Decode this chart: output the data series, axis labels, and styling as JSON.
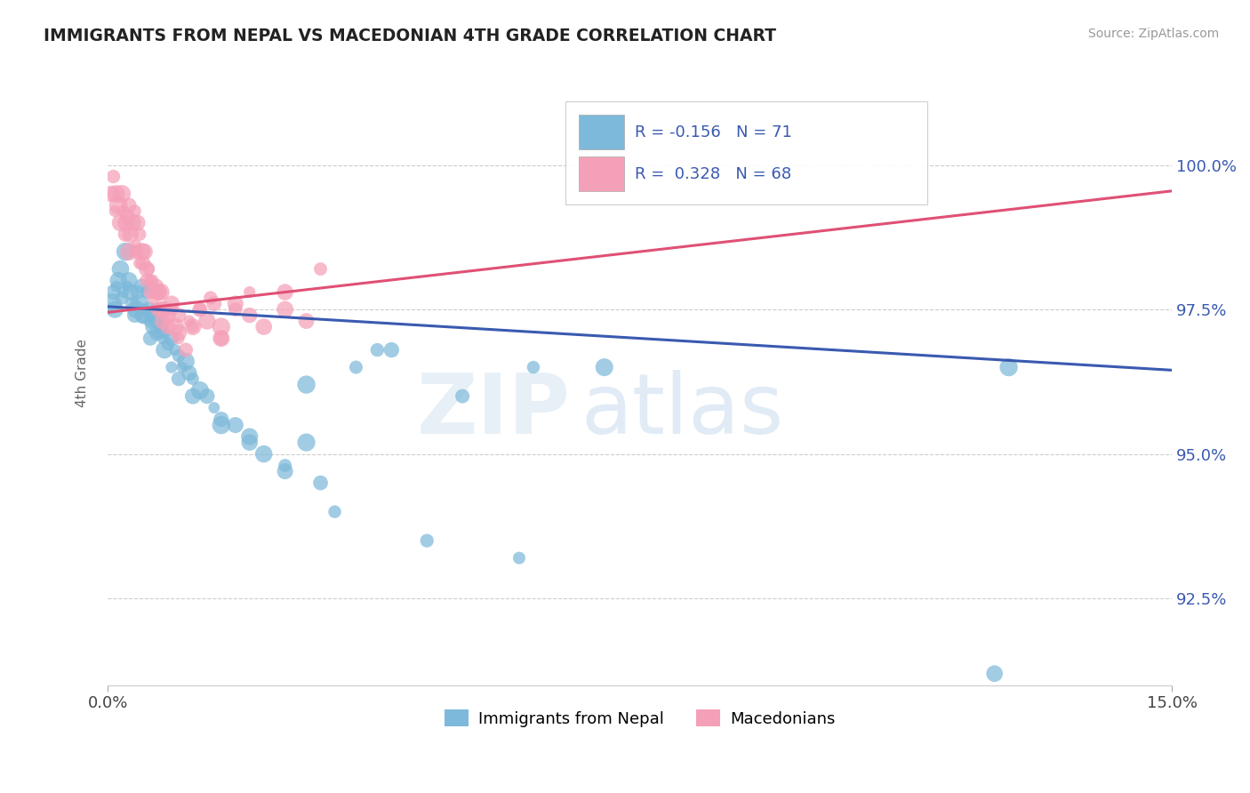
{
  "title": "IMMIGRANTS FROM NEPAL VS MACEDONIAN 4TH GRADE CORRELATION CHART",
  "source_text": "Source: ZipAtlas.com",
  "ylabel": "4th Grade",
  "xlim": [
    0.0,
    15.0
  ],
  "ylim": [
    91.0,
    101.8
  ],
  "yticks": [
    92.5,
    95.0,
    97.5,
    100.0
  ],
  "ytick_labels": [
    "92.5%",
    "95.0%",
    "97.5%",
    "100.0%"
  ],
  "xticks": [
    0.0,
    15.0
  ],
  "xtick_labels": [
    "0.0%",
    "15.0%"
  ],
  "blue_color": "#7db9da",
  "pink_color": "#f4a0b8",
  "blue_line_color": "#3a5ab0",
  "pink_line_color": "#e05075",
  "blue_line_x0": 0.0,
  "blue_line_y0": 97.55,
  "blue_line_x1": 15.0,
  "blue_line_y1": 96.45,
  "pink_line_x0": 0.0,
  "pink_line_y0": 97.45,
  "pink_line_x1": 15.0,
  "pink_line_y1": 99.55,
  "blue_x": [
    0.05,
    0.08,
    0.1,
    0.12,
    0.15,
    0.18,
    0.2,
    0.22,
    0.25,
    0.28,
    0.3,
    0.32,
    0.35,
    0.38,
    0.4,
    0.42,
    0.45,
    0.48,
    0.5,
    0.52,
    0.55,
    0.58,
    0.6,
    0.63,
    0.65,
    0.68,
    0.7,
    0.72,
    0.75,
    0.78,
    0.8,
    0.85,
    0.9,
    0.95,
    1.0,
    1.05,
    1.1,
    1.15,
    1.2,
    1.3,
    1.4,
    1.5,
    1.6,
    1.8,
    2.0,
    2.2,
    2.5,
    2.8,
    3.0,
    3.5,
    4.0,
    5.0,
    6.0,
    7.0,
    2.8,
    0.5,
    0.6,
    0.7,
    0.8,
    0.9,
    1.0,
    1.2,
    1.6,
    2.0,
    2.5,
    3.2,
    4.5,
    5.8,
    3.8,
    12.5,
    12.7
  ],
  "blue_y": [
    97.6,
    97.8,
    97.5,
    97.9,
    98.0,
    98.2,
    97.7,
    97.8,
    98.5,
    97.9,
    98.0,
    97.8,
    97.6,
    97.4,
    97.5,
    97.8,
    97.6,
    97.9,
    97.5,
    97.4,
    97.8,
    97.5,
    97.3,
    97.4,
    97.2,
    97.5,
    97.3,
    97.1,
    97.2,
    97.0,
    97.1,
    96.9,
    97.0,
    96.8,
    96.7,
    96.5,
    96.6,
    96.4,
    96.3,
    96.1,
    96.0,
    95.8,
    95.6,
    95.5,
    95.3,
    95.0,
    94.8,
    96.2,
    94.5,
    96.5,
    96.8,
    96.0,
    96.5,
    96.5,
    95.2,
    97.4,
    97.0,
    97.1,
    96.8,
    96.5,
    96.3,
    96.0,
    95.5,
    95.2,
    94.7,
    94.0,
    93.5,
    93.2,
    96.8,
    91.2,
    96.5
  ],
  "pink_x": [
    0.05,
    0.08,
    0.1,
    0.12,
    0.15,
    0.18,
    0.2,
    0.22,
    0.25,
    0.28,
    0.3,
    0.32,
    0.35,
    0.38,
    0.4,
    0.42,
    0.45,
    0.48,
    0.5,
    0.52,
    0.55,
    0.58,
    0.6,
    0.63,
    0.65,
    0.68,
    0.7,
    0.72,
    0.75,
    0.78,
    0.8,
    0.85,
    0.9,
    0.95,
    1.0,
    1.1,
    1.2,
    1.3,
    1.4,
    1.5,
    1.6,
    1.8,
    2.0,
    2.2,
    2.5,
    2.8,
    0.3,
    0.45,
    0.6,
    0.75,
    0.9,
    1.0,
    1.2,
    1.6,
    2.0,
    2.5,
    3.0,
    0.25,
    0.4,
    0.55,
    0.7,
    0.85,
    1.0,
    1.15,
    1.3,
    1.45,
    1.6,
    1.8
  ],
  "pink_y": [
    99.5,
    99.8,
    99.2,
    99.5,
    99.3,
    99.0,
    99.5,
    99.2,
    98.8,
    99.1,
    99.3,
    98.8,
    99.0,
    99.2,
    98.6,
    99.0,
    98.8,
    98.5,
    98.3,
    98.5,
    98.0,
    98.2,
    97.8,
    98.0,
    97.7,
    97.9,
    97.5,
    97.8,
    97.5,
    97.3,
    97.5,
    97.2,
    97.5,
    97.2,
    97.0,
    96.8,
    97.2,
    97.5,
    97.3,
    97.6,
    97.0,
    97.5,
    97.8,
    97.2,
    97.5,
    97.3,
    98.5,
    98.3,
    98.0,
    97.8,
    97.6,
    97.4,
    97.2,
    97.0,
    97.4,
    97.8,
    98.2,
    99.0,
    98.5,
    98.2,
    97.8,
    97.4,
    97.1,
    97.3,
    97.5,
    97.7,
    97.2,
    97.6
  ],
  "legend1_label": "Immigrants from Nepal",
  "legend2_label": "Macedonians"
}
